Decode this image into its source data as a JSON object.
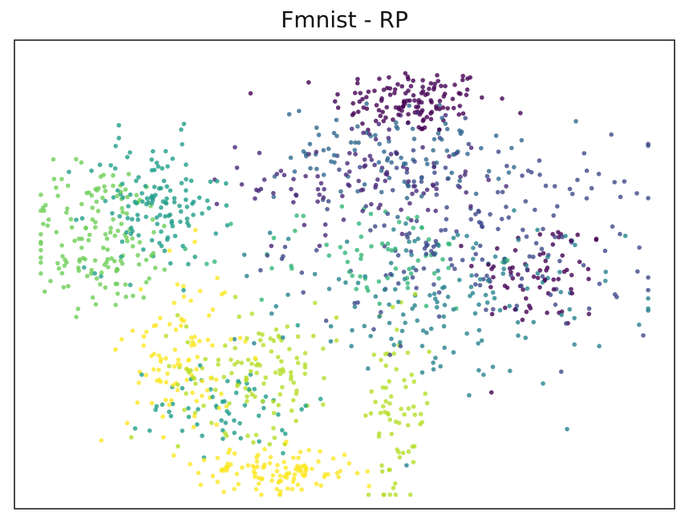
{
  "chart_data": {
    "type": "scatter",
    "title": "Fmnist - RP",
    "xlabel": "",
    "ylabel": "",
    "axes_ticks_visible": false,
    "grid": false,
    "legend": "none",
    "colormap": "viridis",
    "xlim": [
      0,
      100
    ],
    "ylim": [
      0,
      100
    ],
    "clusters": [
      {
        "class": 0,
        "color": "#440154",
        "center": [
          60,
          87
        ],
        "spread": [
          6,
          3.5
        ],
        "count": 130
      },
      {
        "class": 0,
        "color": "#440154",
        "center": [
          80,
          50
        ],
        "spread": [
          5,
          6
        ],
        "count": 70
      },
      {
        "class": 1,
        "color": "#482878",
        "center": [
          53,
          70
        ],
        "spread": [
          9,
          6
        ],
        "count": 110
      },
      {
        "class": 2,
        "color": "#3e4989",
        "center": [
          70,
          58
        ],
        "spread": [
          14,
          10
        ],
        "count": 180
      },
      {
        "class": 3,
        "color": "#31688e",
        "center": [
          58,
          76
        ],
        "spread": [
          9,
          5
        ],
        "count": 100
      },
      {
        "class": 4,
        "color": "#26828e",
        "center": [
          66,
          44
        ],
        "spread": [
          13,
          9
        ],
        "count": 150
      },
      {
        "class": 5,
        "color": "#1f9e89",
        "center": [
          21,
          65
        ],
        "spread": [
          5,
          7
        ],
        "count": 130
      },
      {
        "class": 5,
        "color": "#1f9e89",
        "center": [
          33,
          22
        ],
        "spread": [
          6,
          5
        ],
        "count": 60
      },
      {
        "class": 6,
        "color": "#35b779",
        "center": [
          54,
          54
        ],
        "spread": [
          9,
          6
        ],
        "count": 70
      },
      {
        "class": 7,
        "color": "#6ece58",
        "center": [
          13,
          58
        ],
        "spread": [
          6,
          8
        ],
        "count": 150
      },
      {
        "class": 8,
        "color": "#b5de2b",
        "center": [
          37,
          30
        ],
        "spread": [
          6,
          7
        ],
        "count": 120
      },
      {
        "class": 8,
        "color": "#b5de2b",
        "center": [
          58,
          20
        ],
        "spread": [
          2.5,
          10
        ],
        "count": 70
      },
      {
        "class": 9,
        "color": "#fde725",
        "center": [
          40,
          8
        ],
        "spread": [
          6,
          2.5
        ],
        "count": 110
      },
      {
        "class": 9,
        "color": "#fde725",
        "center": [
          25,
          33
        ],
        "spread": [
          4,
          10
        ],
        "count": 100
      }
    ]
  }
}
